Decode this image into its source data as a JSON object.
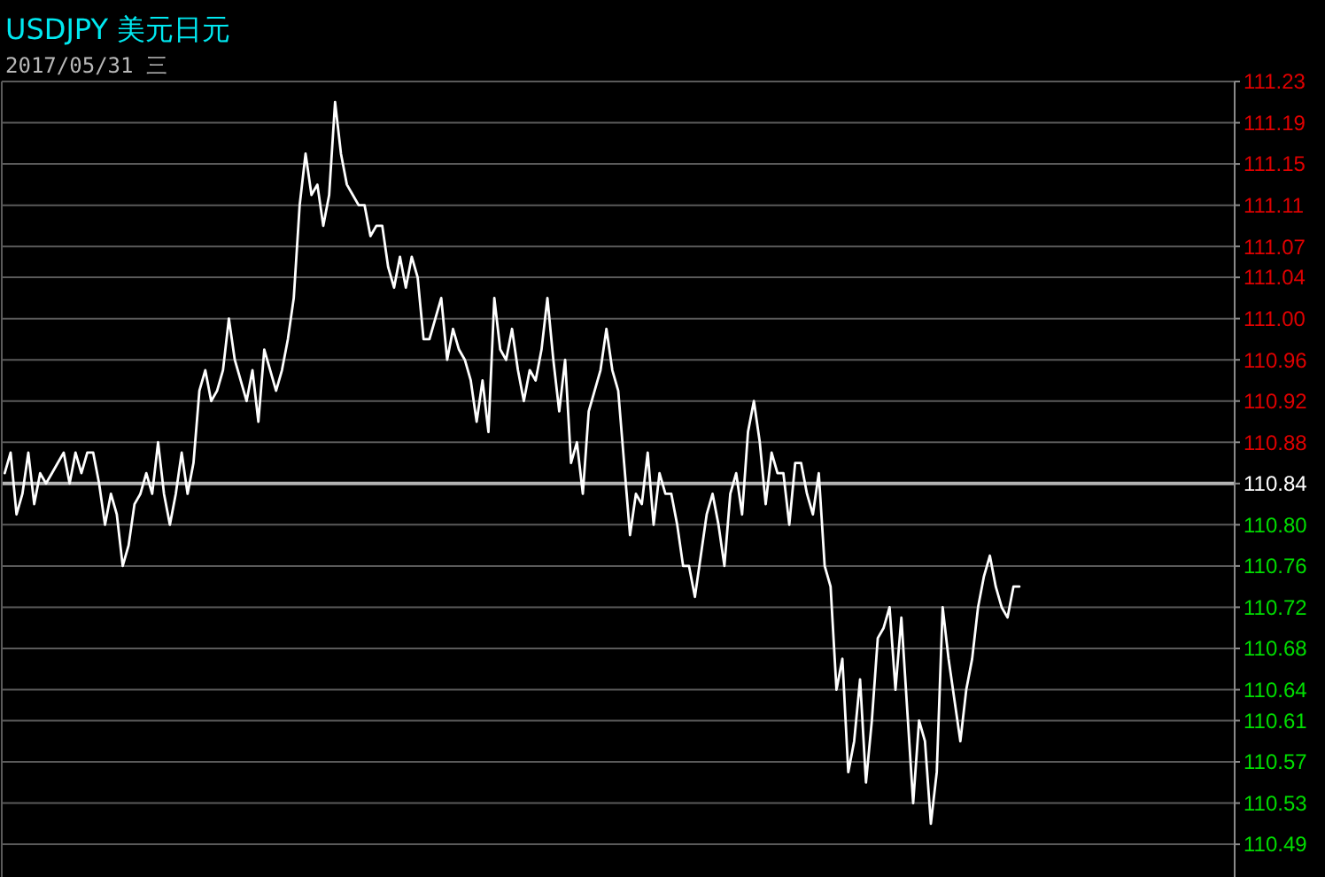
{
  "chart_data": {
    "type": "line",
    "title": "USDJPY 美元日元",
    "subtitle": "2017/05/31 三",
    "categories": [
      null,
      null,
      null,
      null,
      null,
      null,
      null,
      null,
      null,
      null,
      null,
      null,
      null,
      null,
      null,
      null,
      null,
      null,
      null,
      null,
      null,
      null,
      null,
      null,
      null,
      null,
      null,
      null,
      null,
      null,
      null,
      null,
      null,
      null,
      null,
      null,
      null,
      null,
      null,
      null,
      null,
      null,
      null,
      null,
      null,
      null,
      null,
      null,
      null,
      null,
      null,
      null,
      null,
      null,
      null,
      null,
      null,
      null,
      null,
      null,
      null,
      null,
      null,
      null,
      null,
      null,
      null,
      null,
      null,
      null,
      null,
      null,
      null,
      null,
      null,
      null,
      null,
      null,
      null,
      null,
      null,
      null,
      null,
      null,
      null,
      null,
      null,
      null,
      null,
      null,
      null,
      null,
      null,
      null,
      null,
      null,
      null,
      null,
      null,
      null,
      null,
      null,
      null,
      null,
      null,
      null,
      null,
      null,
      null,
      null,
      null,
      null,
      null,
      null,
      null,
      null,
      null,
      null,
      null,
      null,
      null,
      null,
      null,
      null,
      null,
      null,
      null,
      null,
      null,
      null,
      null,
      null,
      null,
      null,
      null,
      null,
      null,
      null,
      null,
      null,
      null,
      null,
      null,
      null,
      null,
      null,
      null,
      null,
      null,
      null,
      null,
      null,
      null,
      null,
      null,
      null,
      null,
      null,
      null,
      null,
      null,
      null,
      null,
      null,
      null,
      null,
      null,
      null,
      null,
      null,
      null,
      null,
      null,
      null,
      null,
      null,
      null,
      null,
      null,
      null,
      null,
      null,
      null,
      null,
      null,
      null,
      null,
      null,
      null,
      null,
      null,
      null,
      null,
      null,
      null,
      null,
      null,
      null,
      null,
      null,
      null,
      null,
      null,
      null,
      null,
      null,
      null,
      null,
      null
    ],
    "ylim": [
      110.46,
      111.23
    ],
    "yticks": [
      111.23,
      111.19,
      111.15,
      111.11,
      111.07,
      111.04,
      {
        "value": 111.0,
        "label": "111.00"
      },
      110.96,
      110.92,
      110.88,
      110.84,
      {
        "value": 110.8,
        "label": "110.80"
      },
      110.76,
      110.72,
      110.68,
      110.64,
      110.61,
      110.57,
      110.53,
      110.49
    ],
    "grid": "y",
    "tick_labels": "y",
    "line_style": "solid",
    "ref_lines": [
      {
        "axis": "y",
        "value": 110.84,
        "color": "#b4b4b4"
      }
    ],
    "series": [
      {
        "color": "#ffffff",
        "values": [
          110.85,
          110.87,
          110.81,
          110.83,
          110.87,
          110.82,
          110.85,
          110.84,
          110.85,
          110.86,
          110.87,
          110.84,
          110.87,
          110.85,
          110.87,
          110.87,
          110.84,
          110.8,
          110.83,
          110.81,
          110.76,
          110.78,
          110.82,
          110.83,
          110.85,
          110.83,
          110.88,
          110.83,
          110.8,
          110.83,
          110.87,
          110.83,
          110.86,
          110.93,
          110.95,
          110.92,
          110.93,
          110.95,
          111.0,
          110.96,
          110.94,
          110.92,
          110.95,
          110.9,
          110.97,
          110.95,
          110.93,
          110.95,
          110.98,
          111.02,
          111.11,
          111.16,
          111.12,
          111.13,
          111.09,
          111.12,
          111.21,
          111.16,
          111.13,
          111.12,
          111.11,
          111.11,
          111.08,
          111.09,
          111.09,
          111.05,
          111.03,
          111.06,
          111.03,
          111.06,
          111.04,
          110.98,
          110.98,
          111.0,
          111.02,
          110.96,
          110.99,
          110.97,
          110.96,
          110.94,
          110.9,
          110.94,
          110.89,
          111.02,
          110.97,
          110.96,
          110.99,
          110.95,
          110.92,
          110.95,
          110.94,
          110.97,
          111.02,
          110.96,
          110.91,
          110.96,
          110.86,
          110.88,
          110.83,
          110.91,
          110.93,
          110.95,
          110.99,
          110.95,
          110.93,
          110.86,
          110.79,
          110.83,
          110.82,
          110.87,
          110.8,
          110.85,
          110.83,
          110.83,
          110.8,
          110.76,
          110.76,
          110.73,
          110.77,
          110.81,
          110.83,
          110.8,
          110.76,
          110.83,
          110.85,
          110.81,
          110.89,
          110.92,
          110.88,
          110.82,
          110.87,
          110.85,
          110.85,
          110.8,
          110.86,
          110.86,
          110.83,
          110.81,
          110.85,
          110.76,
          110.74,
          110.64,
          110.67,
          110.56,
          110.59,
          110.65,
          110.55,
          110.61,
          110.69,
          110.7,
          110.72,
          110.64,
          110.71,
          110.62,
          110.53,
          110.61,
          110.59,
          110.51,
          110.56,
          110.72,
          110.67,
          110.63,
          110.59,
          110.64,
          110.67,
          110.72,
          110.75,
          110.77,
          110.74,
          110.72,
          110.71,
          110.74,
          110.74,
          null,
          null,
          null,
          null,
          null,
          null,
          null,
          null,
          null,
          null,
          null,
          null,
          null,
          null,
          null,
          null,
          null,
          null,
          null,
          null,
          null,
          null,
          null,
          null,
          null,
          null,
          null,
          null,
          null,
          null,
          null,
          null,
          null,
          null,
          null,
          null
        ]
      }
    ]
  }
}
